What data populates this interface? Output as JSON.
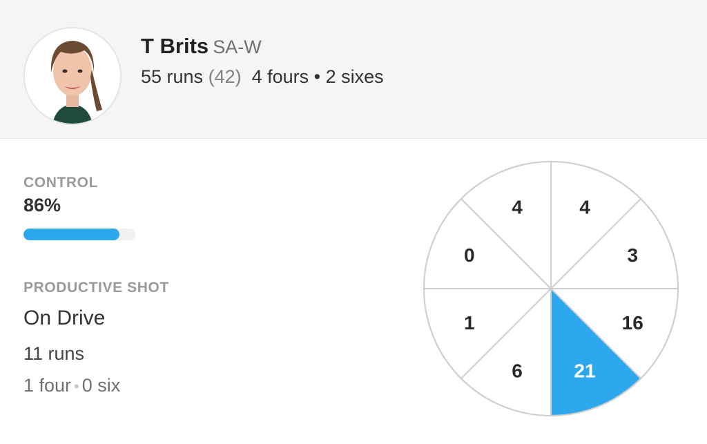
{
  "player": {
    "name": "T Brits",
    "team": "SA-W",
    "runs_text": "55 runs",
    "balls_text": "(42)",
    "fours_text": "4 fours",
    "separator": "•",
    "sixes_text": "2 sixes"
  },
  "control": {
    "label": "CONTROL",
    "value_text": "86%",
    "value": 0.86,
    "bar_color": "#2ea8ec"
  },
  "productive_shot": {
    "label": "PRODUCTIVE SHOT",
    "shot": "On Drive",
    "runs_text": "11 runs",
    "fours_text": "1 four",
    "separator": "•",
    "sixes_text": "0 six"
  },
  "wagon_wheel": {
    "segments": [
      {
        "value": "4"
      },
      {
        "value": "3"
      },
      {
        "value": "16"
      },
      {
        "value": "21"
      },
      {
        "value": "6"
      },
      {
        "value": "1"
      },
      {
        "value": "0"
      },
      {
        "value": "4"
      }
    ],
    "highlight_index": 3,
    "highlight_color": "#2ea8ec"
  }
}
